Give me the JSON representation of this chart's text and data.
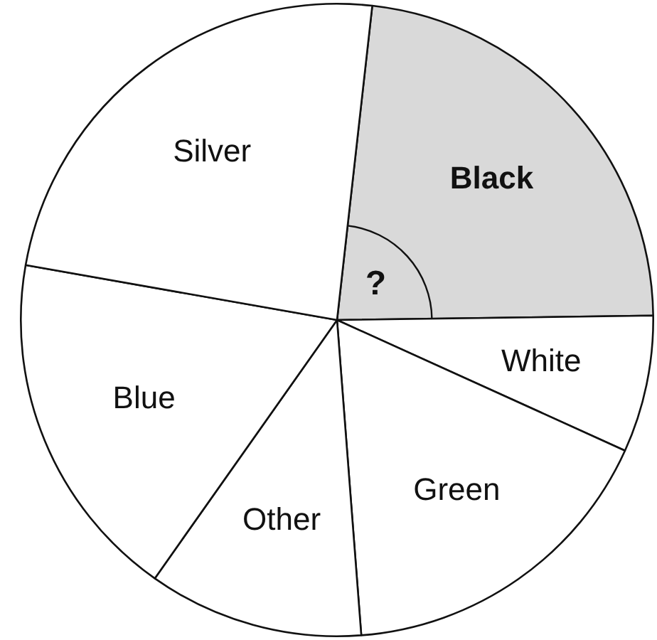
{
  "chart_data": {
    "type": "pie",
    "categories": [
      "Black",
      "White",
      "Green",
      "Other",
      "Blue",
      "Silver"
    ],
    "values": [
      23,
      7,
      17,
      11,
      18,
      24
    ],
    "colors": [
      "#d9d9d9",
      "#ffffff",
      "#ffffff",
      "#ffffff",
      "#ffffff",
      "#ffffff"
    ],
    "data_labels": false,
    "legend": false,
    "annotations": [
      {
        "text": "?",
        "x": "Black"
      }
    ]
  }
}
